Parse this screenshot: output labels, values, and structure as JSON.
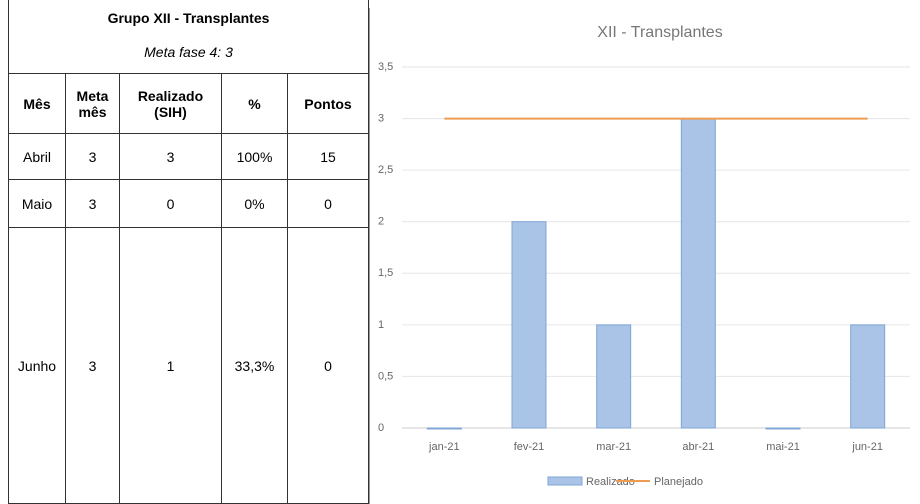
{
  "table": {
    "title": "Grupo XII - Transplantes",
    "subtitle": "Meta fase 4: 3",
    "columns": [
      "Mês",
      "Meta mês",
      "Realizado (SIH)",
      "%",
      "Pontos"
    ],
    "rows": [
      [
        "Abril",
        "3",
        "3",
        "100%",
        "15"
      ],
      [
        "Maio",
        "3",
        "0",
        "0%",
        "0"
      ],
      [
        "Junho",
        "3",
        "1",
        "33,3%",
        "0"
      ]
    ]
  },
  "chart_data": {
    "type": "bar",
    "title": "XII - Transplantes",
    "categories": [
      "jan-21",
      "fev-21",
      "mar-21",
      "abr-21",
      "mai-21",
      "jun-21"
    ],
    "series": [
      {
        "name": "Realizado",
        "type": "bar",
        "color": "#a9c4e6",
        "values": [
          0,
          2,
          1,
          3,
          0,
          1
        ]
      },
      {
        "name": "Planejado",
        "type": "line",
        "color": "#ed9c50",
        "values": [
          3,
          3,
          3,
          3,
          3,
          3
        ]
      }
    ],
    "ylim": [
      0,
      3.5
    ],
    "yticks": [
      0,
      {
        "value": 0.5,
        "label": "0,5"
      },
      1,
      {
        "value": 1.5,
        "label": "1,5"
      },
      2,
      {
        "value": 2.5,
        "label": "2,5"
      },
      3,
      {
        "value": 3.5,
        "label": "3,5"
      }
    ],
    "grid": true,
    "legend": "bottom"
  }
}
